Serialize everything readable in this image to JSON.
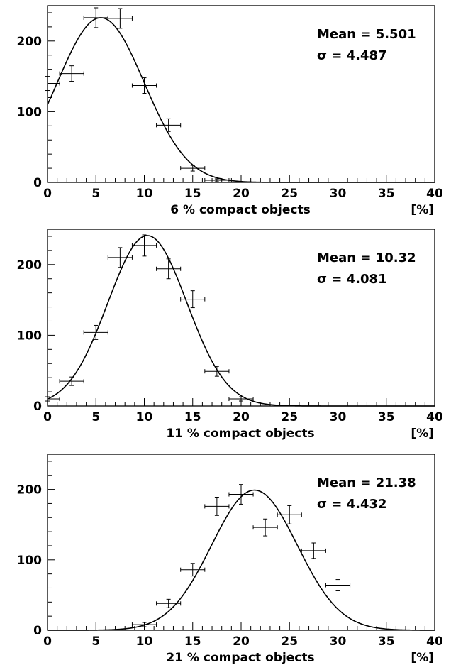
{
  "chart_data": [
    {
      "type": "scatter",
      "xlabel": "6 % compact objects",
      "unit_label": "[%]",
      "xlim": [
        0,
        40
      ],
      "ylim": [
        0,
        250
      ],
      "xticks": [
        "0",
        "5",
        "10",
        "15",
        "20",
        "25",
        "30",
        "35",
        "40"
      ],
      "yticks": [
        "0",
        "100",
        "200"
      ],
      "stats": {
        "mean_text": "Mean = 5.501",
        "sigma_text": "σ = 4.487"
      },
      "fit": {
        "type": "gaussian",
        "amplitude": 233,
        "mean": 5.501,
        "sigma": 4.487
      },
      "bin_half_width": 1.25,
      "points": [
        {
          "x": 0,
          "y": 140,
          "err": 10
        },
        {
          "x": 2.5,
          "y": 154,
          "err": 11
        },
        {
          "x": 5,
          "y": 233,
          "err": 14
        },
        {
          "x": 7.5,
          "y": 232,
          "err": 14
        },
        {
          "x": 10,
          "y": 137,
          "err": 11
        },
        {
          "x": 12.5,
          "y": 81,
          "err": 9
        },
        {
          "x": 15,
          "y": 20,
          "err": 4
        },
        {
          "x": 17.5,
          "y": 3,
          "err": 2
        }
      ]
    },
    {
      "type": "scatter",
      "xlabel": "11 % compact objects",
      "unit_label": "[%]",
      "xlim": [
        0,
        40
      ],
      "ylim": [
        0,
        250
      ],
      "xticks": [
        "0",
        "5",
        "10",
        "15",
        "20",
        "25",
        "30",
        "35",
        "40"
      ],
      "yticks": [
        "0",
        "100",
        "200"
      ],
      "stats": {
        "mean_text": "Mean = 10.32",
        "sigma_text": "σ = 4.081"
      },
      "fit": {
        "type": "gaussian",
        "amplitude": 241,
        "mean": 10.32,
        "sigma": 4.081
      },
      "bin_half_width": 1.25,
      "points": [
        {
          "x": 0,
          "y": 10,
          "err": 3
        },
        {
          "x": 2.5,
          "y": 35,
          "err": 6
        },
        {
          "x": 5,
          "y": 104,
          "err": 10
        },
        {
          "x": 7.5,
          "y": 210,
          "err": 14
        },
        {
          "x": 10,
          "y": 227,
          "err": 15
        },
        {
          "x": 12.5,
          "y": 194,
          "err": 14
        },
        {
          "x": 15,
          "y": 151,
          "err": 12
        },
        {
          "x": 17.5,
          "y": 49,
          "err": 7
        },
        {
          "x": 20,
          "y": 10,
          "err": 3
        }
      ]
    },
    {
      "type": "scatter",
      "xlabel": "21 % compact objects",
      "unit_label": "[%]",
      "xlim": [
        0,
        40
      ],
      "ylim": [
        0,
        250
      ],
      "xticks": [
        "0",
        "5",
        "10",
        "15",
        "20",
        "25",
        "30",
        "35",
        "40"
      ],
      "yticks": [
        "0",
        "100",
        "200"
      ],
      "stats": {
        "mean_text": "Mean = 21.38",
        "sigma_text": "σ = 4.432"
      },
      "fit": {
        "type": "gaussian",
        "amplitude": 199,
        "mean": 21.38,
        "sigma": 4.432
      },
      "bin_half_width": 1.25,
      "points": [
        {
          "x": 10,
          "y": 8,
          "err": 3
        },
        {
          "x": 12.5,
          "y": 38,
          "err": 6
        },
        {
          "x": 15,
          "y": 86,
          "err": 9
        },
        {
          "x": 17.5,
          "y": 176,
          "err": 13
        },
        {
          "x": 20,
          "y": 193,
          "err": 14
        },
        {
          "x": 22.5,
          "y": 146,
          "err": 12
        },
        {
          "x": 25,
          "y": 164,
          "err": 13
        },
        {
          "x": 27.5,
          "y": 113,
          "err": 11
        },
        {
          "x": 30,
          "y": 64,
          "err": 8
        }
      ]
    }
  ]
}
